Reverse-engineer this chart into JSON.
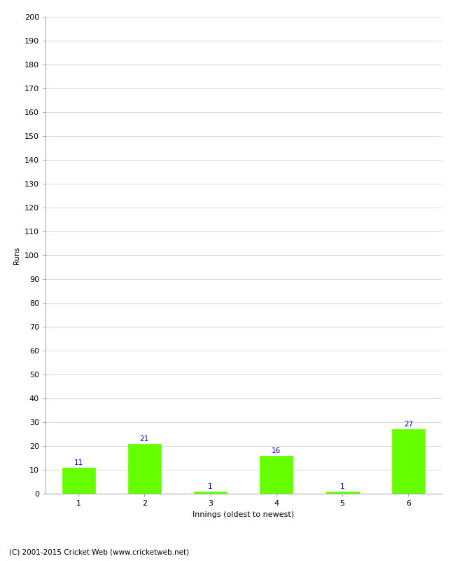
{
  "categories": [
    "1",
    "2",
    "3",
    "4",
    "5",
    "6"
  ],
  "values": [
    11,
    21,
    1,
    16,
    1,
    27
  ],
  "bar_color": "#66ff00",
  "bar_edge_color": "#66ff00",
  "xlabel": "Innings (oldest to newest)",
  "ylabel": "Runs",
  "ylim": [
    0,
    200
  ],
  "yticks": [
    0,
    10,
    20,
    30,
    40,
    50,
    60,
    70,
    80,
    90,
    100,
    110,
    120,
    130,
    140,
    150,
    160,
    170,
    180,
    190,
    200
  ],
  "value_label_color": "#0000cc",
  "value_label_fontsize": 7.5,
  "axis_tick_fontsize": 8,
  "ylabel_fontsize": 7.5,
  "xlabel_fontsize": 8,
  "footer_text": "(C) 2001-2015 Cricket Web (www.cricketweb.net)",
  "footer_fontsize": 7.5,
  "background_color": "#ffffff",
  "grid_color": "#cccccc"
}
